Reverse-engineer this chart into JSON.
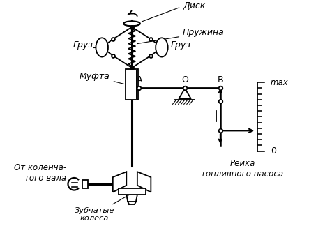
{
  "bg_color": "#ffffff",
  "line_color": "#000000",
  "labels": {
    "disk": "Диск",
    "spring": "Пружина",
    "weight_left": "Груз",
    "weight_right": "Груз",
    "clutch": "Муфта",
    "from_crankshaft": "От коленча-\nтого вала",
    "gears": "Зубчатые\nколеса",
    "point_A": "А",
    "point_O": "О",
    "point_B": "В",
    "rack": "Рейка\nтопливного насоса",
    "max": "max",
    "zero": "0"
  },
  "figsize": [
    4.76,
    3.47
  ],
  "dpi": 100
}
